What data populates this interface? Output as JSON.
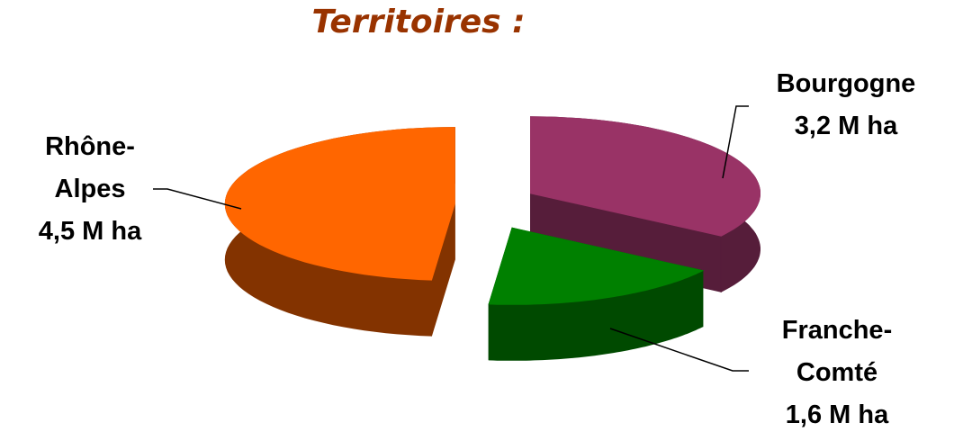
{
  "chart_data": {
    "type": "pie",
    "title": "Territoires :",
    "categories": [
      "Bourgogne",
      "Franche-Comté",
      "Rhône-Alpes"
    ],
    "values": [
      3.2,
      1.6,
      4.5
    ],
    "value_labels": [
      "3,2 M ha",
      "1,6 M ha",
      "4,5 M ha"
    ],
    "colors": [
      "#993366",
      "#008000",
      "#ff6600"
    ],
    "side_colors": [
      "#561d3a",
      "#004a00",
      "#833300"
    ]
  }
}
